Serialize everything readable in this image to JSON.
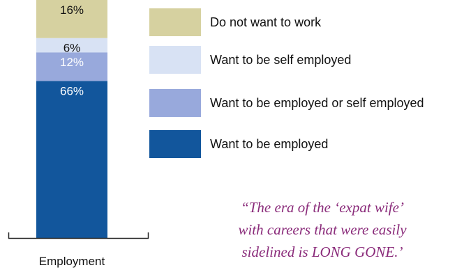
{
  "chart_data": {
    "type": "bar",
    "stacked": true,
    "categories": [
      "Employment"
    ],
    "series": [
      {
        "name": "Want to be employed",
        "values": [
          66
        ],
        "label": "66%",
        "color": "#12569c",
        "label_color": "#ffffff"
      },
      {
        "name": "Want to be employed or self employed",
        "values": [
          12
        ],
        "label": "12%",
        "color": "#98a9dc",
        "label_color": "#ffffff"
      },
      {
        "name": "Want to be self employed",
        "values": [
          6
        ],
        "label": "6%",
        "color": "#d8e2f4",
        "label_color": "#111111"
      },
      {
        "name": "Do not want to work",
        "values": [
          16
        ],
        "label": "16%",
        "color": "#d6d1a0",
        "label_color": "#111111"
      }
    ],
    "ylim": [
      0,
      100
    ],
    "grid": false,
    "legend_position": "right",
    "legend_order": [
      "Do not want to work",
      "Want to be self employed",
      "Want to be employed or self employed",
      "Want to be employed"
    ],
    "annotation": {
      "lines": [
        "“The era of the ‘expat wife’",
        "with careers that were easily",
        "sidelined is LONG GONE.’"
      ],
      "color": "#8a2b7a"
    }
  }
}
